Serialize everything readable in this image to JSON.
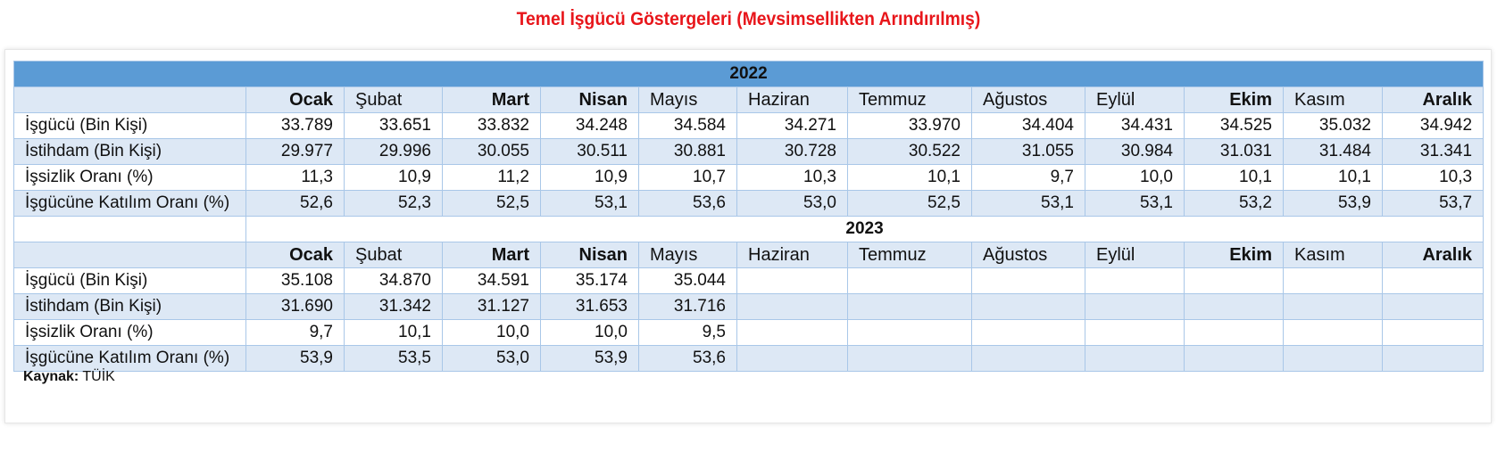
{
  "title": "Temel İşgücü Göstergeleri (Mevsimsellikten Arındırılmış)",
  "months": [
    "Ocak",
    "Şubat",
    "Mart",
    "Nisan",
    "Mayıs",
    "Haziran",
    "Temmuz",
    "Ağustos",
    "Eylül",
    "Ekim",
    "Kasım",
    "Aralık"
  ],
  "year2022": {
    "year": "2022",
    "rows": [
      {
        "label": "İşgücü (Bin Kişi)",
        "values": [
          "33.789",
          "33.651",
          "33.832",
          "34.248",
          "34.584",
          "34.271",
          "33.970",
          "34.404",
          "34.431",
          "34.525",
          "35.032",
          "34.942"
        ]
      },
      {
        "label": "İstihdam (Bin Kişi)",
        "values": [
          "29.977",
          "29.996",
          "30.055",
          "30.511",
          "30.881",
          "30.728",
          "30.522",
          "31.055",
          "30.984",
          "31.031",
          "31.484",
          "31.341"
        ]
      },
      {
        "label": "İşsizlik Oranı (%)",
        "values": [
          "11,3",
          "10,9",
          "11,2",
          "10,9",
          "10,7",
          "10,3",
          "10,1",
          "9,7",
          "10,0",
          "10,1",
          "10,1",
          "10,3"
        ]
      },
      {
        "label": "İşgücüne Katılım Oranı (%)",
        "values": [
          "52,6",
          "52,3",
          "52,5",
          "53,1",
          "53,6",
          "53,0",
          "52,5",
          "53,1",
          "53,1",
          "53,2",
          "53,9",
          "53,7"
        ]
      }
    ]
  },
  "year2023": {
    "year": "2023",
    "rows": [
      {
        "label": "İşgücü (Bin Kişi)",
        "values": [
          "35.108",
          "34.870",
          "34.591",
          "35.174",
          "35.044",
          "",
          "",
          "",
          "",
          "",
          "",
          ""
        ]
      },
      {
        "label": "İstihdam (Bin Kişi)",
        "values": [
          "31.690",
          "31.342",
          "31.127",
          "31.653",
          "31.716",
          "",
          "",
          "",
          "",
          "",
          "",
          ""
        ]
      },
      {
        "label": "İşsizlik Oranı (%)",
        "values": [
          "9,7",
          "10,1",
          "10,0",
          "10,0",
          "9,5",
          "",
          "",
          "",
          "",
          "",
          "",
          ""
        ]
      },
      {
        "label": "İşgücüne Katılım Oranı (%)",
        "values": [
          "53,9",
          "53,5",
          "53,0",
          "53,9",
          "53,6",
          "",
          "",
          "",
          "",
          "",
          "",
          ""
        ]
      }
    ]
  },
  "source": {
    "label": "Kaynak:",
    "value": "TÜİK"
  },
  "colors": {
    "title": "#e8161b",
    "year_header": "#5b9bd5",
    "row_alt": "#dde8f5",
    "border": "#a9c7e8"
  }
}
